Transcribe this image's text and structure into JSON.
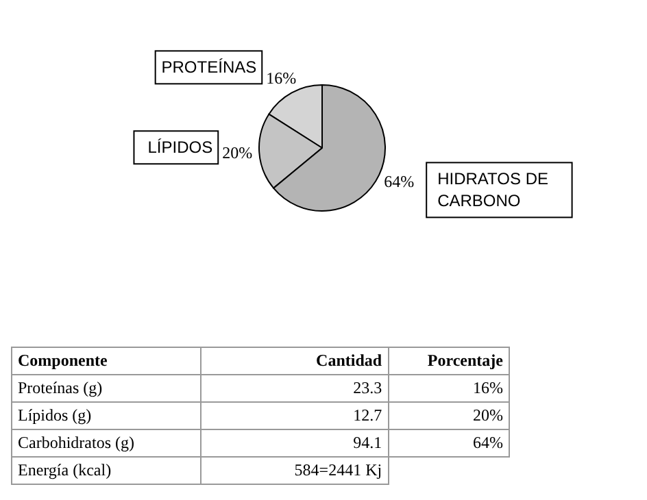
{
  "chart_data": {
    "type": "pie",
    "categories": [
      "PROTEÍNAS",
      "LÍPIDOS",
      "HIDRATOS DE CARBONO"
    ],
    "values": [
      16,
      20,
      64
    ],
    "colors": [
      "#d4d4d4",
      "#c4c4c4",
      "#b4b4b4"
    ],
    "value_labels": [
      "16%",
      "20%",
      "64%"
    ],
    "legend": false,
    "annotations": [
      "Componente",
      "Cantidad",
      "Porcentaje",
      "Proteínas (g)",
      "23.3",
      "16%",
      "Lípidos (g)",
      "12.7",
      "20%",
      "Carbohidratos (g)",
      "94.1",
      "64%",
      "Energía (kcal)",
      "584=2441 Kj"
    ]
  }
}
